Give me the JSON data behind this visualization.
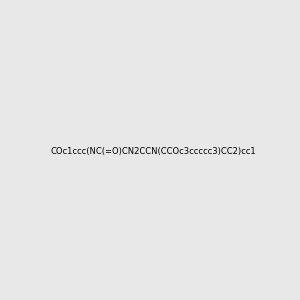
{
  "smiles": "COc1ccc(NC(=O)CN2CCN(CCOc3ccccc3)CC2)cc1",
  "image_size": 300,
  "background_color": "#e8e8e8",
  "bond_color": "#1a1a1a",
  "atom_colors": {
    "N": "#0000ff",
    "O": "#ff0000",
    "H_on_N": "#5f9ea0"
  }
}
